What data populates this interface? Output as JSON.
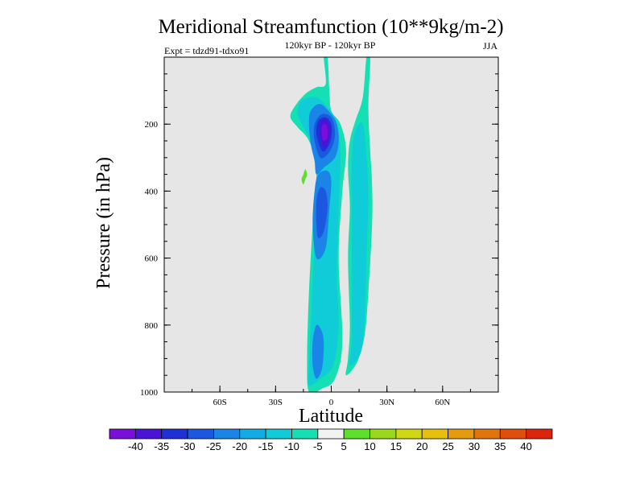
{
  "chart_data": {
    "type": "contour",
    "title": "Meridional Streamfunction (10**9kg/m-2)",
    "subtitle_left": "Expt = tdzd91-tdxo91",
    "subtitle_center": "120kyr BP - 120kyr BP",
    "subtitle_right": "JJA",
    "xlabel": "Latitude",
    "ylabel": "Pressure (in hPa)",
    "xlim": [
      -90,
      90
    ],
    "ylim": [
      0,
      1000
    ],
    "y_inverted": true,
    "x_ticks": [
      {
        "value": -60,
        "label": "60S"
      },
      {
        "value": -30,
        "label": "30S"
      },
      {
        "value": 0,
        "label": "0"
      },
      {
        "value": 30,
        "label": "30N"
      },
      {
        "value": 60,
        "label": "60N"
      }
    ],
    "y_ticks": [
      {
        "value": 200,
        "label": "200"
      },
      {
        "value": 400,
        "label": "400"
      },
      {
        "value": 600,
        "label": "600"
      },
      {
        "value": 800,
        "label": "800"
      },
      {
        "value": 1000,
        "label": "1000"
      }
    ],
    "background_color": "#e6e6e6",
    "colorbar": {
      "labels": [
        "-40",
        "-35",
        "-30",
        "-25",
        "-20",
        "-15",
        "-10",
        "-5",
        "5",
        "10",
        "15",
        "20",
        "25",
        "30",
        "35",
        "40"
      ],
      "colors": [
        "#7a0fdc",
        "#4a14d6",
        "#2030d8",
        "#1c57e0",
        "#1a85e6",
        "#12ace4",
        "#0fccd8",
        "#14e0b4",
        "#f2f2f2",
        "#5ce02a",
        "#9ad81c",
        "#cfd810",
        "#e8c00c",
        "#e49c0c",
        "#e2740c",
        "#e04e0c",
        "#de240c"
      ]
    },
    "regions": [
      {
        "level": "-10 to -5",
        "color": "#14e0b4",
        "polygon": [
          [
            -12,
            1000
          ],
          [
            -5,
            990
          ],
          [
            2,
            960
          ],
          [
            6,
            850
          ],
          [
            4,
            600
          ],
          [
            6,
            400
          ],
          [
            8,
            280
          ],
          [
            5,
            200
          ],
          [
            0,
            160
          ],
          [
            -1,
            100
          ],
          [
            -2,
            0
          ],
          [
            -4,
            0
          ],
          [
            -3,
            80
          ],
          [
            -8,
            90
          ],
          [
            -14,
            110
          ],
          [
            -20,
            150
          ],
          [
            -22,
            180
          ],
          [
            -18,
            210
          ],
          [
            -12,
            250
          ],
          [
            -8,
            330
          ],
          [
            -10,
            500
          ],
          [
            -12,
            700
          ],
          [
            -13,
            900
          ]
        ]
      },
      {
        "level": "-10 to -5",
        "color": "#14e0b4",
        "polygon": [
          [
            8,
            950
          ],
          [
            14,
            910
          ],
          [
            18,
            830
          ],
          [
            20,
            700
          ],
          [
            22,
            500
          ],
          [
            22,
            380
          ],
          [
            21,
            280
          ],
          [
            20,
            150
          ],
          [
            21,
            0
          ],
          [
            19,
            0
          ],
          [
            17,
            120
          ],
          [
            13,
            190
          ],
          [
            10,
            250
          ],
          [
            9,
            330
          ],
          [
            10,
            450
          ],
          [
            9,
            600
          ],
          [
            10,
            800
          ],
          [
            9,
            900
          ]
        ]
      },
      {
        "level": "-15 to -10",
        "color": "#0fccd8",
        "polygon": [
          [
            -12,
            980
          ],
          [
            -6,
            960
          ],
          [
            1,
            920
          ],
          [
            4,
            800
          ],
          [
            3,
            650
          ],
          [
            4,
            450
          ],
          [
            5,
            300
          ],
          [
            4,
            220
          ],
          [
            2,
            180
          ],
          [
            -2,
            150
          ],
          [
            -8,
            120
          ],
          [
            -16,
            130
          ],
          [
            -18,
            170
          ],
          [
            -14,
            220
          ],
          [
            -9,
            270
          ],
          [
            -7,
            350
          ],
          [
            -9,
            550
          ],
          [
            -11,
            800
          ],
          [
            -12,
            920
          ]
        ]
      },
      {
        "level": "-15 to -10",
        "color": "#0fccd8",
        "polygon": [
          [
            10,
            920
          ],
          [
            16,
            880
          ],
          [
            18,
            780
          ],
          [
            19,
            600
          ],
          [
            20,
            420
          ],
          [
            19,
            300
          ],
          [
            17,
            200
          ],
          [
            13,
            220
          ],
          [
            11,
            300
          ],
          [
            11,
            450
          ],
          [
            11,
            650
          ],
          [
            11,
            850
          ]
        ]
      },
      {
        "level": "-20 to -15",
        "color": "#1a85e6",
        "polygon": [
          [
            -8,
            960
          ],
          [
            -5,
            930
          ],
          [
            -4,
            860
          ],
          [
            -5,
            820
          ],
          [
            -8,
            800
          ],
          [
            -10,
            850
          ],
          [
            -10,
            920
          ]
        ]
      },
      {
        "level": "-20 to -15",
        "color": "#1a85e6",
        "polygon": [
          [
            -8,
            600
          ],
          [
            -3,
            570
          ],
          [
            -1,
            450
          ],
          [
            0,
            370
          ],
          [
            -2,
            340
          ],
          [
            -7,
            350
          ],
          [
            -9,
            400
          ],
          [
            -10,
            500
          ]
        ]
      },
      {
        "level": "-20 to -15",
        "color": "#1a85e6",
        "polygon": [
          [
            -8,
            350
          ],
          [
            -4,
            330
          ],
          [
            2,
            300
          ],
          [
            4,
            250
          ],
          [
            3,
            200
          ],
          [
            0,
            170
          ],
          [
            -6,
            140
          ],
          [
            -11,
            160
          ],
          [
            -12,
            200
          ],
          [
            -11,
            260
          ],
          [
            -9,
            310
          ]
        ]
      },
      {
        "level": "-25 to -20",
        "color": "#1c57e0",
        "polygon": [
          [
            -7,
            540
          ],
          [
            -4,
            520
          ],
          [
            -2,
            450
          ],
          [
            -3,
            400
          ],
          [
            -6,
            390
          ],
          [
            -8,
            430
          ],
          [
            -8,
            500
          ]
        ]
      },
      {
        "level": "-25 to -20",
        "color": "#1c57e0",
        "polygon": [
          [
            -6,
            300
          ],
          [
            -2,
            290
          ],
          [
            1,
            260
          ],
          [
            2,
            220
          ],
          [
            0,
            180
          ],
          [
            -5,
            170
          ],
          [
            -9,
            200
          ],
          [
            -9,
            250
          ]
        ]
      },
      {
        "level": "-30 to -25",
        "color": "#2030d8",
        "polygon": [
          [
            -5,
            280
          ],
          [
            -2,
            270
          ],
          [
            0,
            240
          ],
          [
            0,
            200
          ],
          [
            -3,
            180
          ],
          [
            -7,
            190
          ],
          [
            -8,
            230
          ]
        ]
      },
      {
        "level": "-35 to -30",
        "color": "#4a14d6",
        "polygon": [
          [
            -4,
            270
          ],
          [
            -2,
            260
          ],
          [
            -1,
            230
          ],
          [
            -1,
            200
          ],
          [
            -3,
            185
          ],
          [
            -6,
            195
          ],
          [
            -6,
            235
          ]
        ]
      },
      {
        "level": "-40 to -35",
        "color": "#7a0fdc",
        "polygon": [
          [
            -4,
            250
          ],
          [
            -2,
            240
          ],
          [
            -2,
            215
          ],
          [
            -3,
            200
          ],
          [
            -5,
            205
          ],
          [
            -5,
            235
          ]
        ]
      },
      {
        "level": "5 to 10",
        "color": "#5ce02a",
        "polygon": [
          [
            -14,
            335
          ],
          [
            -13,
            350
          ],
          [
            -14,
            365
          ],
          [
            -15,
            380
          ],
          [
            -16,
            365
          ],
          [
            -15,
            350
          ]
        ]
      }
    ]
  }
}
